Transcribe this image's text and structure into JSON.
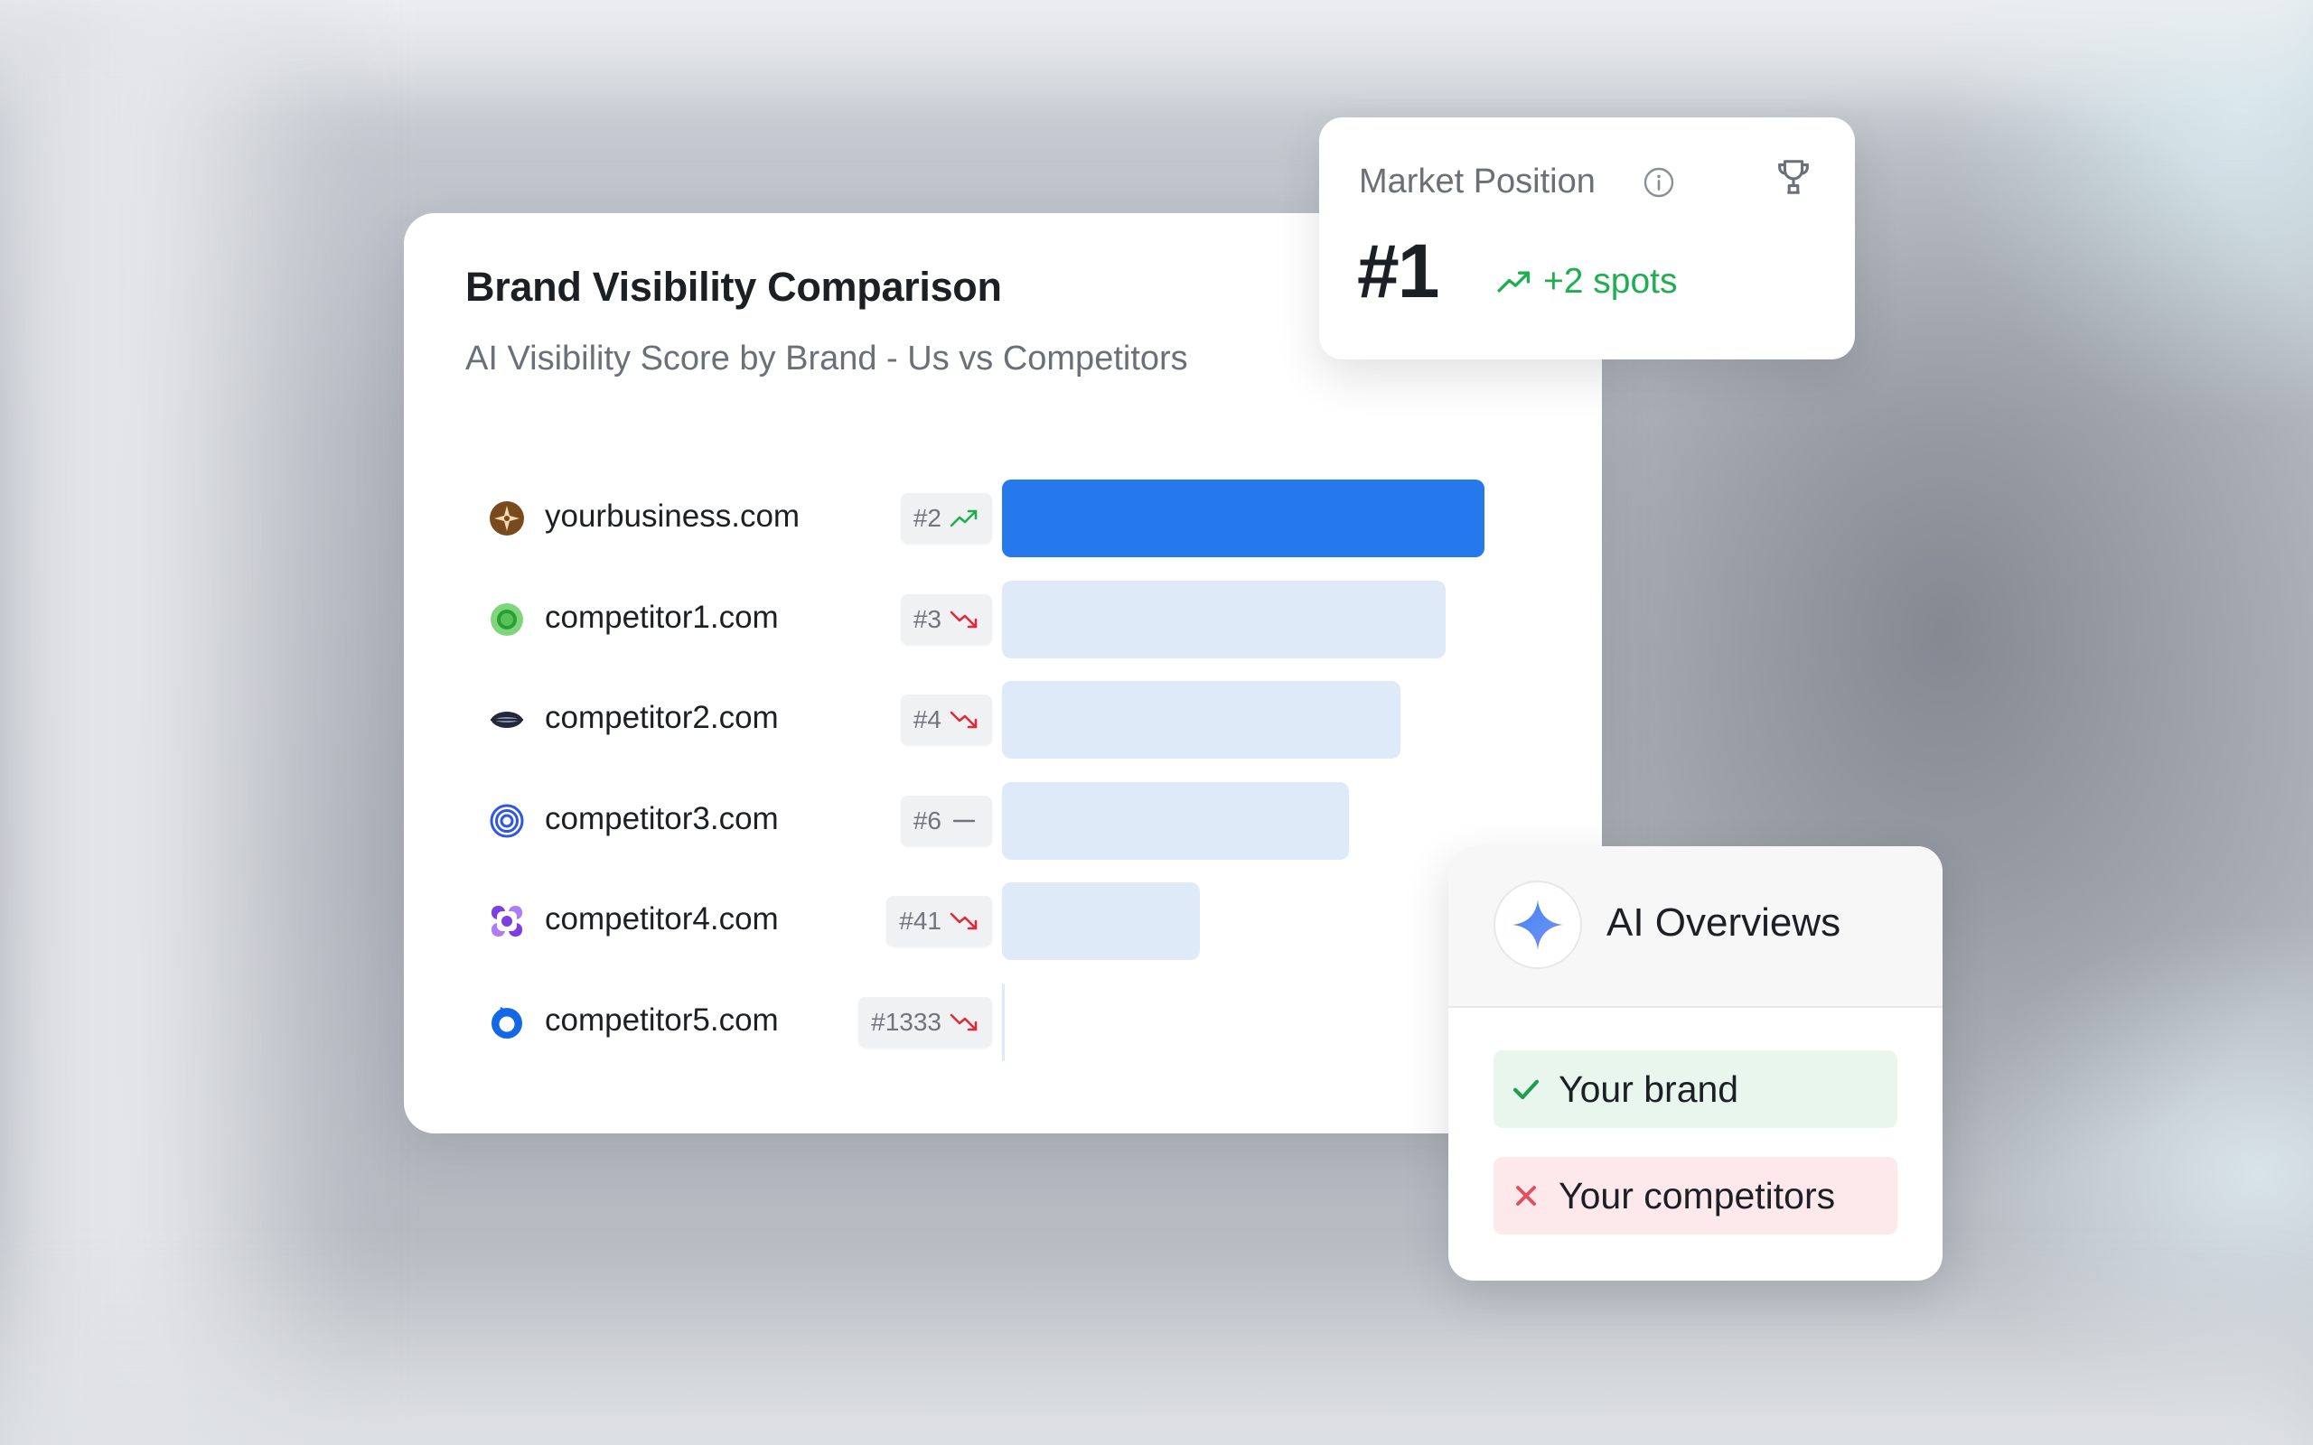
{
  "comparison": {
    "title": "Brand Visibility Comparison",
    "subtitle": "AI Visibility Score by Brand - Us vs Competitors",
    "colors": {
      "own_bar": "#2579ec",
      "competitor_bar": "#dfeaf9",
      "trend_up": "#1fae50",
      "trend_down": "#e02a3a",
      "trend_flat": "#70757d"
    },
    "rows": [
      {
        "brand": "yourbusiness.com",
        "rank": "#2",
        "trend": "up",
        "icon": "compass-star-icon",
        "score_fraction": 1.0,
        "highlight": true
      },
      {
        "brand": "competitor1.com",
        "rank": "#3",
        "trend": "down",
        "icon": "green-chat-bubble-icon",
        "score_fraction": 0.92,
        "highlight": false
      },
      {
        "brand": "competitor2.com",
        "rank": "#4",
        "trend": "down",
        "icon": "dark-lips-icon",
        "score_fraction": 0.825,
        "highlight": false
      },
      {
        "brand": "competitor3.com",
        "rank": "#6",
        "trend": "flat",
        "icon": "blue-spiral-icon",
        "score_fraction": 0.72,
        "highlight": false
      },
      {
        "brand": "competitor4.com",
        "rank": "#41",
        "trend": "down",
        "icon": "purple-flower-icon",
        "score_fraction": 0.41,
        "highlight": false
      },
      {
        "brand": "competitor5.com",
        "rank": "#1333",
        "trend": "down",
        "icon": "blue-ring-icon",
        "score_fraction": 0.0,
        "highlight": false
      }
    ]
  },
  "market_position": {
    "label": "Market Position",
    "value": "#1",
    "change": "+2 spots",
    "info_icon": "info-icon",
    "trophy_icon": "trophy-icon"
  },
  "ai_overviews": {
    "title": "AI Overviews",
    "logo_icon": "gemini-sparkle-icon",
    "items": [
      {
        "label": "Your brand",
        "status": "included",
        "icon": "check-icon"
      },
      {
        "label": "Your competitors",
        "status": "excluded",
        "icon": "cross-icon"
      }
    ]
  }
}
